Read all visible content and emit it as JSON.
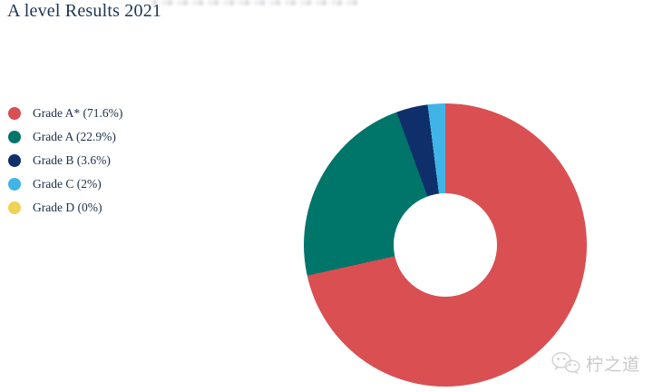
{
  "page": {
    "title": "A level Results 2021",
    "watermark": {
      "text": "柠之道",
      "icon": "wechat-logo-icon"
    },
    "colors": {
      "background": "#ffffff",
      "title_text": "#1e3553",
      "legend_text": "#1c2f49",
      "watermark": "#c9c9c9"
    }
  },
  "chart_data": {
    "type": "pie",
    "subtype": "donut",
    "title": "A level Results 2021",
    "categories": [
      "Grade A*",
      "Grade A",
      "Grade B",
      "Grade C",
      "Grade D"
    ],
    "values": [
      71.6,
      22.9,
      3.6,
      2,
      0
    ],
    "colors": [
      "#d94f52",
      "#00756a",
      "#0f2f6a",
      "#41b4e7",
      "#f0d355"
    ],
    "legend": [
      {
        "label": "Grade A* (71.6%)",
        "color": "#d94f52",
        "slug": "grade-a-star"
      },
      {
        "label": "Grade A (22.9%)",
        "color": "#00756a",
        "slug": "grade-a"
      },
      {
        "label": "Grade B (3.6%)",
        "color": "#0f2f6a",
        "slug": "grade-b"
      },
      {
        "label": "Grade C (2%)",
        "color": "#41b4e7",
        "slug": "grade-c"
      },
      {
        "label": "Grade D (0%)",
        "color": "#f0d355",
        "slug": "grade-d"
      }
    ],
    "legend_position": "left",
    "start_angle_deg": 0,
    "direction": "clockwise",
    "donut_hole_ratio": 0.365,
    "data_labels_shown": false,
    "axes_shown": false
  }
}
